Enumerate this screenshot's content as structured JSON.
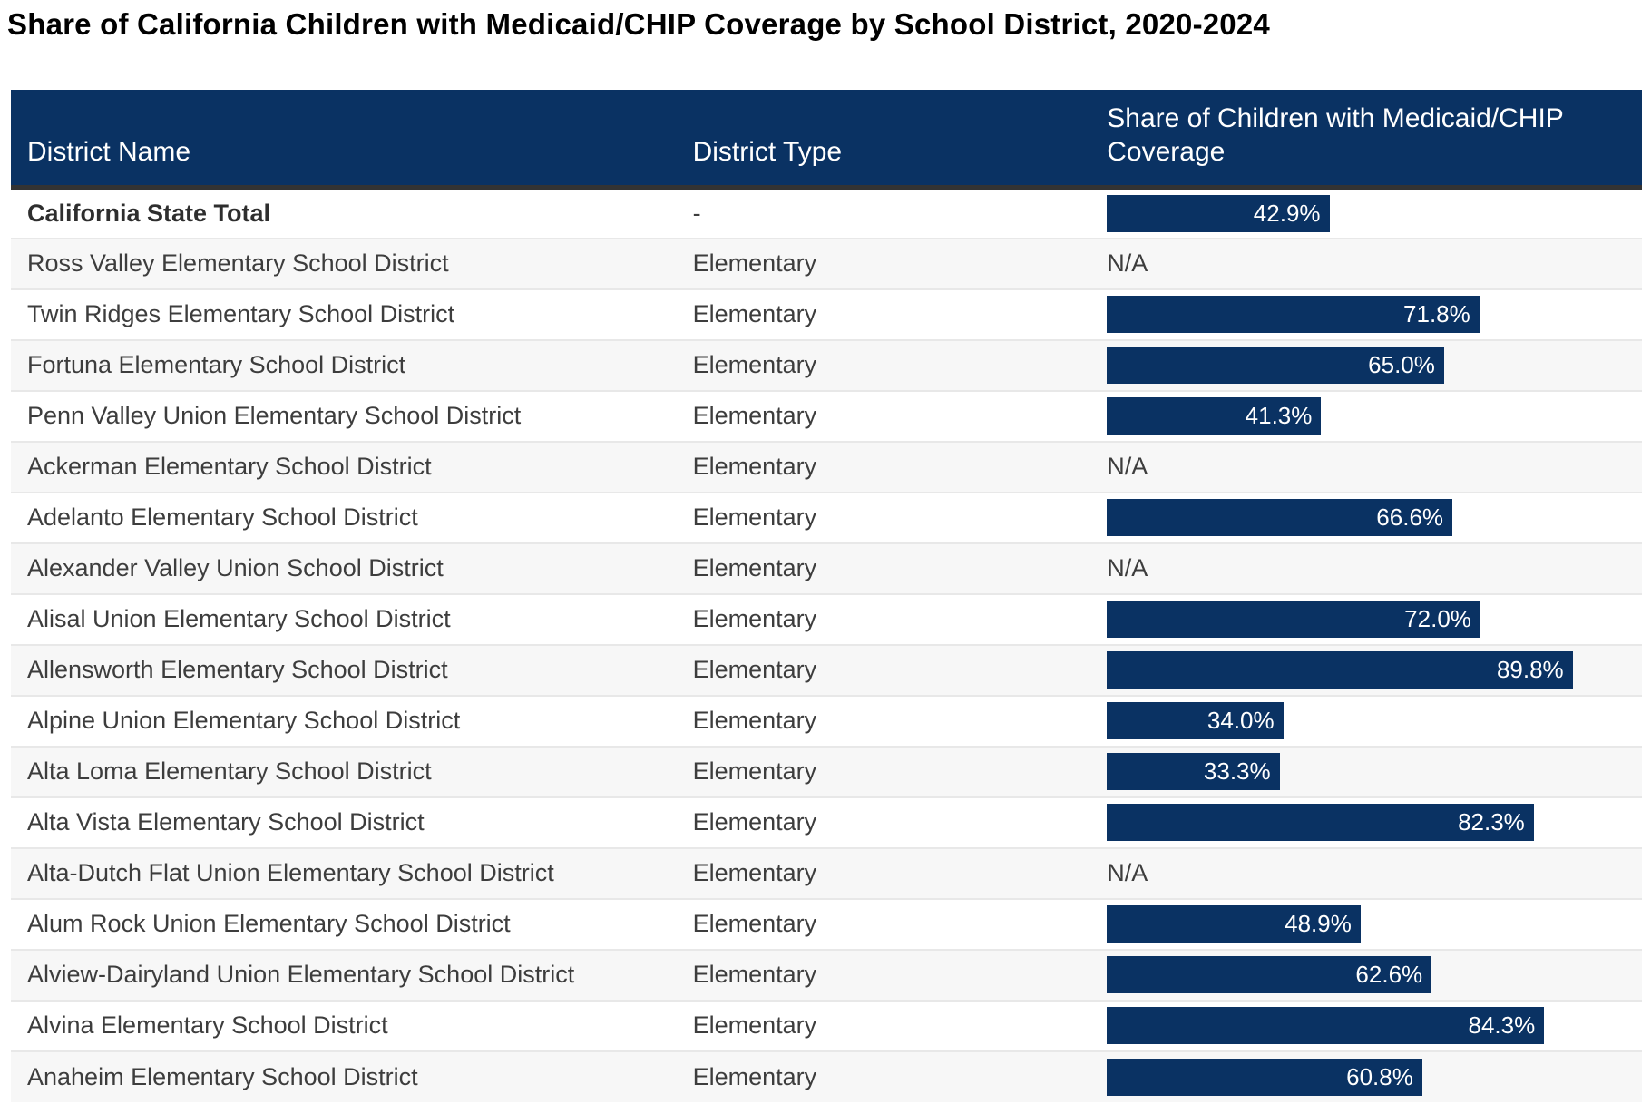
{
  "page": {
    "title": "Share of California Children with Medicaid/CHIP Coverage by School District, 2020-2024",
    "background": "#ffffff"
  },
  "colors": {
    "header_bg": "#0a3263",
    "bar_fill": "#0a3263",
    "header_text": "#ffffff",
    "body_text": "#3d3d3d",
    "alt_row_bg": "#f7f7f7",
    "row_divider": "#e8e8e8",
    "header_border": "#333333"
  },
  "table": {
    "columns": [
      {
        "label": "District Name"
      },
      {
        "label": "District Type"
      },
      {
        "label": "Share of Children with Medicaid/CHIP Coverage"
      }
    ],
    "na_label": "N/A",
    "rows": [
      {
        "name": "California State Total",
        "type": "-",
        "share_label": "42.9%",
        "share_value": 42.9,
        "emphasis": true
      },
      {
        "name": "Ross Valley Elementary School District",
        "type": "Elementary",
        "share_label": "N/A",
        "share_value": null,
        "emphasis": false
      },
      {
        "name": "Twin Ridges Elementary School District",
        "type": "Elementary",
        "share_label": "71.8%",
        "share_value": 71.8,
        "emphasis": false
      },
      {
        "name": "Fortuna Elementary School District",
        "type": "Elementary",
        "share_label": "65.0%",
        "share_value": 65.0,
        "emphasis": false
      },
      {
        "name": "Penn Valley Union Elementary School District",
        "type": "Elementary",
        "share_label": "41.3%",
        "share_value": 41.3,
        "emphasis": false
      },
      {
        "name": "Ackerman Elementary School District",
        "type": "Elementary",
        "share_label": "N/A",
        "share_value": null,
        "emphasis": false
      },
      {
        "name": "Adelanto Elementary School District",
        "type": "Elementary",
        "share_label": "66.6%",
        "share_value": 66.6,
        "emphasis": false
      },
      {
        "name": "Alexander Valley Union School District",
        "type": "Elementary",
        "share_label": "N/A",
        "share_value": null,
        "emphasis": false
      },
      {
        "name": "Alisal Union Elementary School District",
        "type": "Elementary",
        "share_label": "72.0%",
        "share_value": 72.0,
        "emphasis": false
      },
      {
        "name": "Allensworth Elementary School District",
        "type": "Elementary",
        "share_label": "89.8%",
        "share_value": 89.8,
        "emphasis": false
      },
      {
        "name": "Alpine Union Elementary School District",
        "type": "Elementary",
        "share_label": "34.0%",
        "share_value": 34.0,
        "emphasis": false
      },
      {
        "name": "Alta Loma Elementary School District",
        "type": "Elementary",
        "share_label": "33.3%",
        "share_value": 33.3,
        "emphasis": false
      },
      {
        "name": "Alta Vista Elementary School District",
        "type": "Elementary",
        "share_label": "82.3%",
        "share_value": 82.3,
        "emphasis": false
      },
      {
        "name": "Alta-Dutch Flat Union Elementary School District",
        "type": "Elementary",
        "share_label": "N/A",
        "share_value": null,
        "emphasis": false
      },
      {
        "name": "Alum Rock Union Elementary School District",
        "type": "Elementary",
        "share_label": "48.9%",
        "share_value": 48.9,
        "emphasis": false
      },
      {
        "name": "Alview-Dairyland Union Elementary School District",
        "type": "Elementary",
        "share_label": "62.6%",
        "share_value": 62.6,
        "emphasis": false
      },
      {
        "name": "Alvina Elementary School District",
        "type": "Elementary",
        "share_label": "84.3%",
        "share_value": 84.3,
        "emphasis": false
      },
      {
        "name": "Anaheim Elementary School District",
        "type": "Elementary",
        "share_label": "60.8%",
        "share_value": 60.8,
        "emphasis": false
      }
    ]
  },
  "chart_data": {
    "type": "table",
    "title": "Share of California Children with Medicaid/CHIP Coverage by School District, 2020-2024",
    "columns": [
      "District Name",
      "District Type",
      "Share of Children with Medicaid/CHIP Coverage"
    ],
    "bar_column": "Share of Children with Medicaid/CHIP Coverage",
    "bar_scale": [
      0,
      100
    ],
    "rows": [
      [
        "California State Total",
        "-",
        42.9
      ],
      [
        "Ross Valley Elementary School District",
        "Elementary",
        null
      ],
      [
        "Twin Ridges Elementary School District",
        "Elementary",
        71.8
      ],
      [
        "Fortuna Elementary School District",
        "Elementary",
        65.0
      ],
      [
        "Penn Valley Union Elementary School District",
        "Elementary",
        41.3
      ],
      [
        "Ackerman Elementary School District",
        "Elementary",
        null
      ],
      [
        "Adelanto Elementary School District",
        "Elementary",
        66.6
      ],
      [
        "Alexander Valley Union School District",
        "Elementary",
        null
      ],
      [
        "Alisal Union Elementary School District",
        "Elementary",
        72.0
      ],
      [
        "Allensworth Elementary School District",
        "Elementary",
        89.8
      ],
      [
        "Alpine Union Elementary School District",
        "Elementary",
        34.0
      ],
      [
        "Alta Loma Elementary School District",
        "Elementary",
        33.3
      ],
      [
        "Alta Vista Elementary School District",
        "Elementary",
        82.3
      ],
      [
        "Alta-Dutch Flat Union Elementary School District",
        "Elementary",
        null
      ],
      [
        "Alum Rock Union Elementary School District",
        "Elementary",
        48.9
      ],
      [
        "Alview-Dairyland Union Elementary School District",
        "Elementary",
        62.6
      ],
      [
        "Alvina Elementary School District",
        "Elementary",
        84.3
      ],
      [
        "Anaheim Elementary School District",
        "Elementary",
        60.8
      ]
    ]
  }
}
